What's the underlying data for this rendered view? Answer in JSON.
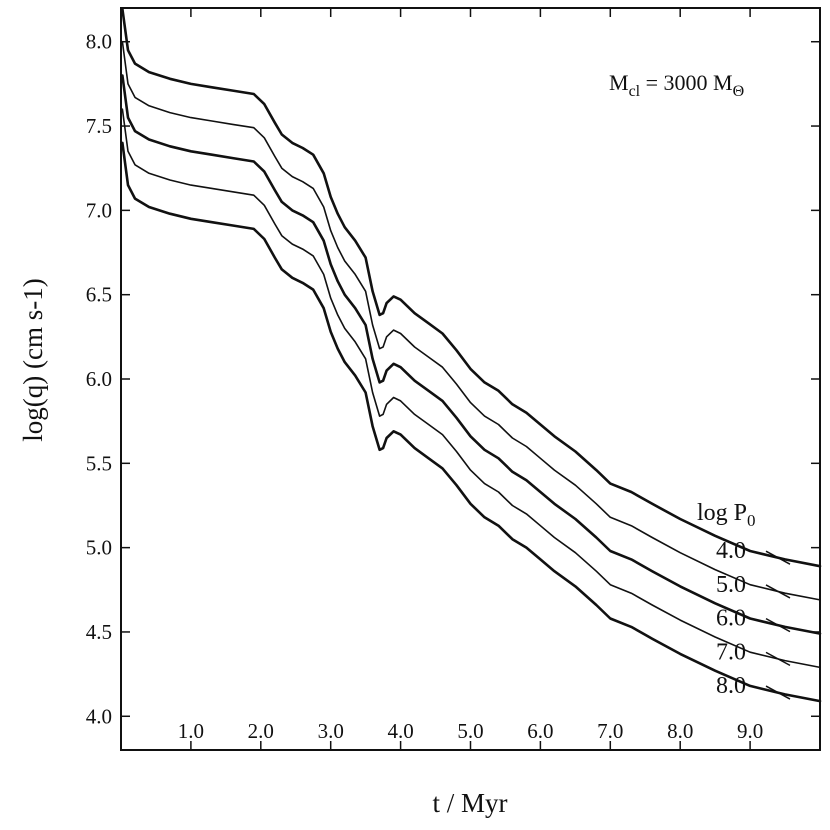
{
  "chart_data": {
    "type": "line",
    "title": "",
    "xlabel": "t / Myr",
    "ylabel": "log(q) (cm s-1)",
    "xlim": [
      0.0,
      10.0
    ],
    "ylim": [
      3.8,
      8.2
    ],
    "xticks": [
      1.0,
      2.0,
      3.0,
      4.0,
      5.0,
      6.0,
      7.0,
      8.0,
      9.0
    ],
    "xtick_labels": [
      "1.0",
      "2.0",
      "3.0",
      "4.0",
      "5.0",
      "6.0",
      "7.0",
      "8.0",
      "9.0"
    ],
    "yticks": [
      4.0,
      4.5,
      5.0,
      5.5,
      6.0,
      6.5,
      7.0,
      7.5,
      8.0
    ],
    "ytick_labels": [
      "4.0",
      "4.5",
      "5.0",
      "5.5",
      "6.0",
      "6.5",
      "7.0",
      "7.5",
      "8.0"
    ],
    "annotation": {
      "main": "M",
      "sub": "cl",
      "rest": " = 3000 M",
      "sub2": "Θ"
    },
    "legend_title": {
      "main": "log P",
      "sub": "0"
    },
    "legend_placement": "right, at curve ends",
    "grid": false,
    "base_curve": {
      "x": [
        0.02,
        0.1,
        0.2,
        0.4,
        0.7,
        1.0,
        1.3,
        1.6,
        1.9,
        2.05,
        2.2,
        2.3,
        2.45,
        2.6,
        2.75,
        2.9,
        3.0,
        3.1,
        3.2,
        3.35,
        3.5,
        3.6,
        3.7,
        3.75,
        3.8,
        3.9,
        4.0,
        4.2,
        4.4,
        4.6,
        4.8,
        5.0,
        5.2,
        5.4,
        5.6,
        5.8,
        6.0,
        6.2,
        6.5,
        6.8,
        7.0,
        7.3,
        7.6,
        8.0,
        8.5,
        9.0,
        9.5,
        10.0
      ],
      "y": [
        8.2,
        7.95,
        7.87,
        7.82,
        7.78,
        7.75,
        7.73,
        7.71,
        7.69,
        7.63,
        7.52,
        7.45,
        7.4,
        7.37,
        7.33,
        7.22,
        7.08,
        6.98,
        6.9,
        6.82,
        6.72,
        6.52,
        6.38,
        6.39,
        6.45,
        6.49,
        6.47,
        6.39,
        6.33,
        6.27,
        6.17,
        6.06,
        5.98,
        5.93,
        5.85,
        5.8,
        5.73,
        5.66,
        5.57,
        5.46,
        5.38,
        5.33,
        5.26,
        5.17,
        5.07,
        4.98,
        4.93,
        4.89
      ]
    },
    "series": [
      {
        "name": "4.0",
        "offset": 0.0,
        "y_end": 4.89
      },
      {
        "name": "5.0",
        "offset": -0.2,
        "y_end": 4.69
      },
      {
        "name": "6.0",
        "offset": -0.4,
        "y_end": 4.49
      },
      {
        "name": "7.0",
        "offset": -0.6,
        "y_end": 4.29
      },
      {
        "name": "8.0",
        "offset": -0.8,
        "y_end": 4.09
      }
    ]
  }
}
